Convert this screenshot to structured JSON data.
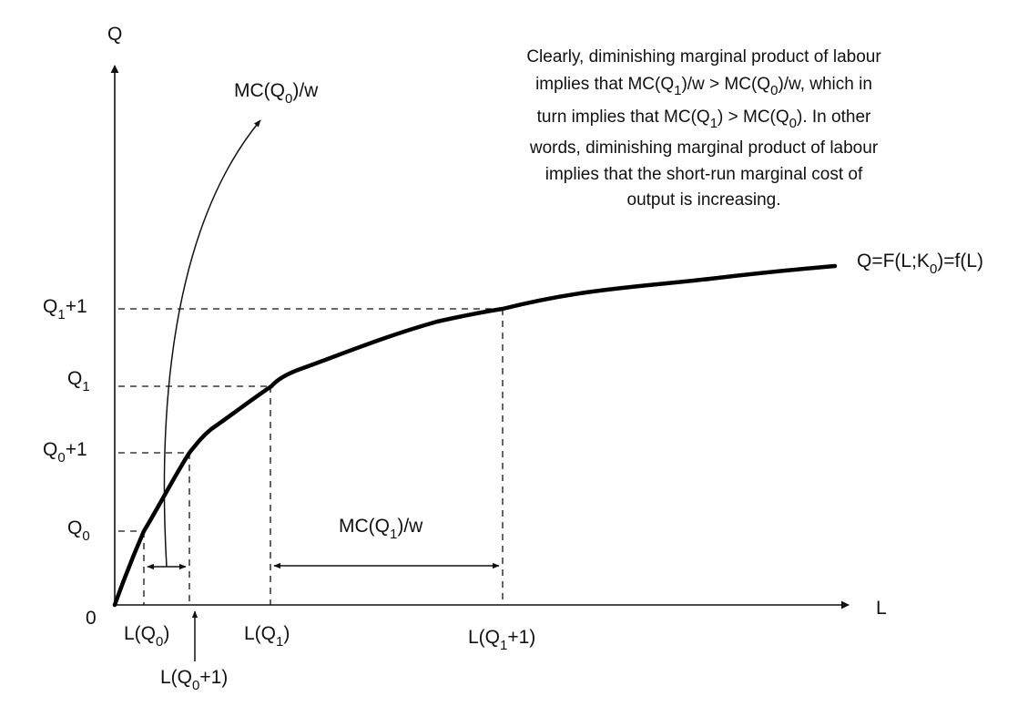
{
  "axes": {
    "y_label": "Q",
    "x_label": "L",
    "origin_label": "0"
  },
  "y_ticks": [
    {
      "base": "Q",
      "sub": "1",
      "suffix": "+1"
    },
    {
      "base": "Q",
      "sub": "1",
      "suffix": ""
    },
    {
      "base": "Q",
      "sub": "0",
      "suffix": "+1"
    },
    {
      "base": "Q",
      "sub": "0",
      "suffix": ""
    }
  ],
  "x_ticks": [
    {
      "pre": "L(Q",
      "sub": "0",
      "post": ")"
    },
    {
      "pre": "L(Q",
      "sub": "0",
      "post": "+1)"
    },
    {
      "pre": "L(Q",
      "sub": "1",
      "post": ")"
    },
    {
      "pre": "L(Q",
      "sub": "1",
      "post": "+1)"
    }
  ],
  "curve_label": {
    "pre": "Q=F(L;K",
    "sub": "0",
    "post": ")=f(L)"
  },
  "mc0_label": {
    "pre": "MC(Q",
    "sub": "0",
    "post": ")/w"
  },
  "mc1_label": {
    "pre": "MC(Q",
    "sub": "1",
    "post": ")/w"
  },
  "annotation": {
    "line1": "Clearly, diminishing marginal product of labour",
    "line2": {
      "a": "implies that MC(Q",
      "s1": "1",
      "b": ")/w > MC(Q",
      "s2": "0",
      "c": ")/w, which in"
    },
    "line3": {
      "a": "turn implies that MC(Q",
      "s1": "1",
      "b": ") > MC(Q",
      "s2": "0",
      "c": "). In other"
    },
    "line4": "words, diminishing marginal product of labour",
    "line5": "implies that the short-run marginal cost of",
    "line6": "output is increasing."
  }
}
